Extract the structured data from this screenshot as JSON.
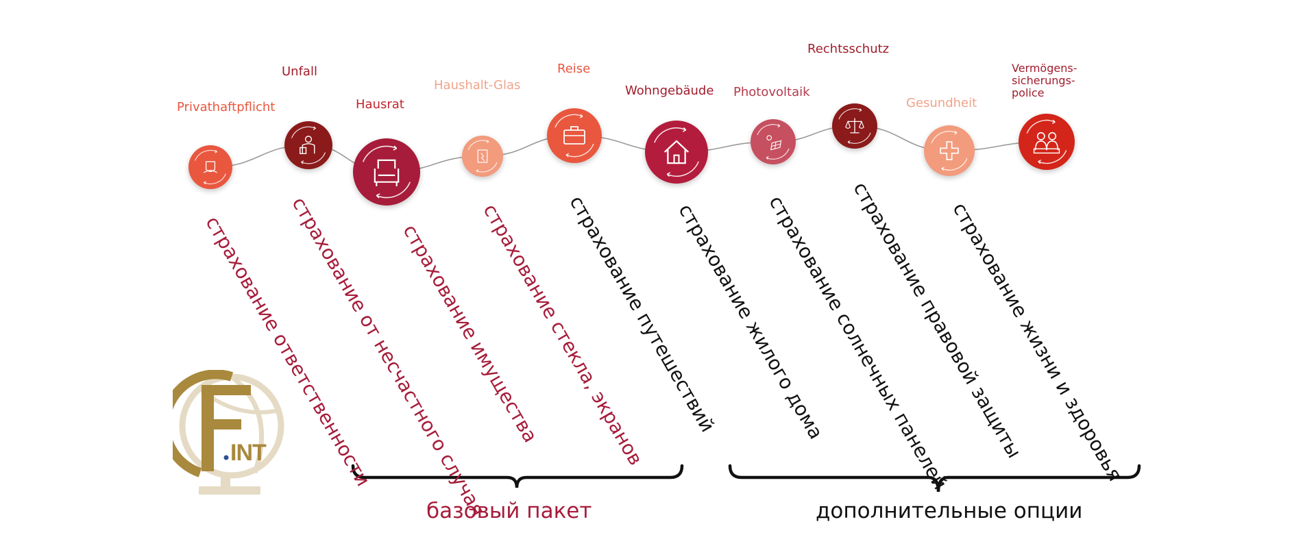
{
  "items": [
    {
      "de": "Privathaftpflicht",
      "ru": "страхование ответственности",
      "icon": "liability-icon",
      "color": "#e9573f",
      "label_color": "#e9573f",
      "ru_color": "#a61c3a"
    },
    {
      "de": "Unfall",
      "ru": "страхование от несчастного случая",
      "icon": "accident-icon",
      "color": "#8b1a1a",
      "label_color": "#a01c2c",
      "ru_color": "#a61c3a"
    },
    {
      "de": "Hausrat",
      "ru": "страхование имущества",
      "icon": "armchair-icon",
      "color": "#a61c3a",
      "label_color": "#c0242c",
      "ru_color": "#a61c3a"
    },
    {
      "de": "Haushalt-Glas",
      "ru": "страхование стекла, экранов",
      "icon": "broken-glass-icon",
      "color": "#f29b7d",
      "label_color": "#f0a38a",
      "ru_color": "#a61c3a"
    },
    {
      "de": "Reise",
      "ru": "страхование путешествий",
      "icon": "suitcase-icon",
      "color": "#e9573f",
      "label_color": "#e9573f",
      "ru_color": "#111111"
    },
    {
      "de": "Wohngebäude",
      "ru": "страхование жилого дома",
      "icon": "house-icon",
      "color": "#b31c3c",
      "label_color": "#a01c2c",
      "ru_color": "#111111"
    },
    {
      "de": "Photovoltaik",
      "ru": "страхование солнечных панелей",
      "icon": "solar-panel-icon",
      "color": "#c65060",
      "label_color": "#b33a4c",
      "ru_color": "#111111"
    },
    {
      "de": "Rechtsschutz",
      "ru": "страхование правовой защиты",
      "icon": "scales-icon",
      "color": "#8b1a1a",
      "label_color": "#a01c2c",
      "ru_color": "#111111"
    },
    {
      "de": "Gesundheit",
      "ru": "страхование жизни и здоровья",
      "icon": "medical-cross-icon",
      "color": "#f29b7d",
      "label_color": "#f0a38a",
      "ru_color": "#111111"
    },
    {
      "de": "Vermögens-\nsicherungs-\npolice",
      "ru": "",
      "icon": "family-icon",
      "color": "#d32519",
      "label_color": "#a01c2c",
      "ru_color": "#111111"
    }
  ],
  "groups": {
    "basic": {
      "label": "базовый пакет",
      "color": "#a61c3a"
    },
    "extra": {
      "label": "дополнительные опции",
      "color": "#111111"
    }
  },
  "logo": {
    "text": "INT",
    "primary_color": "#a8893d",
    "secondary_color": "#e5dac4",
    "dot_color": "#2f4f8f"
  }
}
